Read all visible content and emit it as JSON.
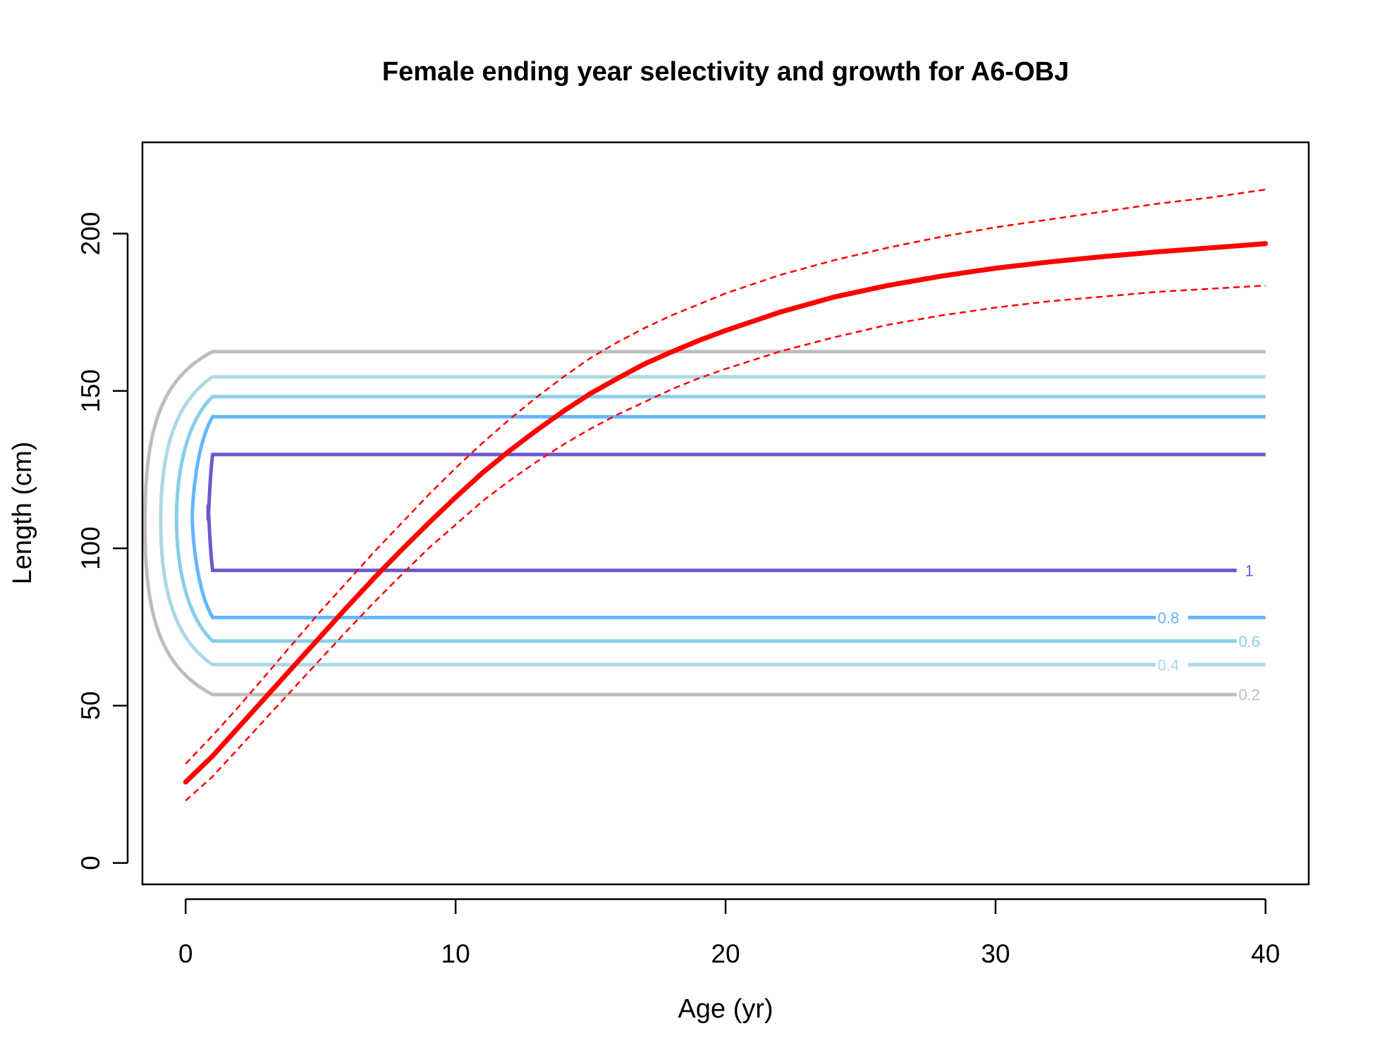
{
  "chart_data": {
    "type": "line",
    "title": "Female ending year selectivity and growth for A6-OBJ",
    "xlabel": "Age (yr)",
    "ylabel": "Length (cm)",
    "xlim": [
      -1.6,
      41.6
    ],
    "ylim": [
      -6.8,
      229
    ],
    "x_ticks": [
      0,
      10,
      20,
      30,
      40
    ],
    "y_ticks": [
      0,
      50,
      100,
      150,
      200
    ],
    "growth": {
      "color": "#ff0000",
      "x": [
        0,
        1,
        2,
        3,
        4,
        5,
        6,
        7,
        8,
        9,
        10,
        11,
        12,
        13,
        14,
        15,
        16,
        17,
        18,
        19,
        20,
        22,
        24,
        26,
        28,
        30,
        32,
        34,
        36,
        38,
        40
      ],
      "mean": [
        25.7,
        34,
        43.5,
        53,
        62.5,
        72,
        81.5,
        90.7,
        99.5,
        108,
        116.2,
        124,
        131,
        137.5,
        143.6,
        149.2,
        154,
        158.6,
        162.4,
        166,
        169.2,
        175,
        179.8,
        183.5,
        186.5,
        189,
        191,
        192.7,
        194.2,
        195.5,
        196.8
      ],
      "upper": [
        31.5,
        40.5,
        50,
        60,
        70,
        80,
        89.5,
        99,
        108,
        117,
        125.5,
        133.5,
        141,
        148,
        154.5,
        160.5,
        165.5,
        170,
        174,
        177.5,
        181,
        186.8,
        191.5,
        195.5,
        199,
        202,
        204.5,
        207,
        209.5,
        211.5,
        214
      ],
      "lower": [
        19.8,
        27.5,
        36.8,
        46.2,
        55.5,
        64.8,
        74,
        83,
        91.6,
        100,
        107.5,
        115,
        121.5,
        127.5,
        133,
        138,
        142.5,
        146.5,
        150.5,
        154,
        157,
        162.5,
        167,
        171,
        174,
        176.5,
        178.5,
        180,
        181.5,
        182.5,
        183.5
      ]
    },
    "selectivity_contours": [
      {
        "level": "0.2",
        "color": "#bebebe",
        "y_low": 53.5,
        "y_high": 162.5,
        "label_x": 39.4
      },
      {
        "level": "0.4",
        "color": "#add8e6",
        "y_low": 63,
        "y_high": 154.5,
        "label_x": 36.4
      },
      {
        "level": "0.6",
        "color": "#87ceeb",
        "y_low": 70.5,
        "y_high": 148.2,
        "label_x": 39.4
      },
      {
        "level": "0.8",
        "color": "#63b8ff",
        "y_low": 78,
        "y_high": 141.8,
        "label_x": 36.4
      },
      {
        "level": "1",
        "color": "#6a5acd",
        "y_low": 93,
        "y_high": 129.8,
        "label_x": 39.4
      }
    ]
  }
}
